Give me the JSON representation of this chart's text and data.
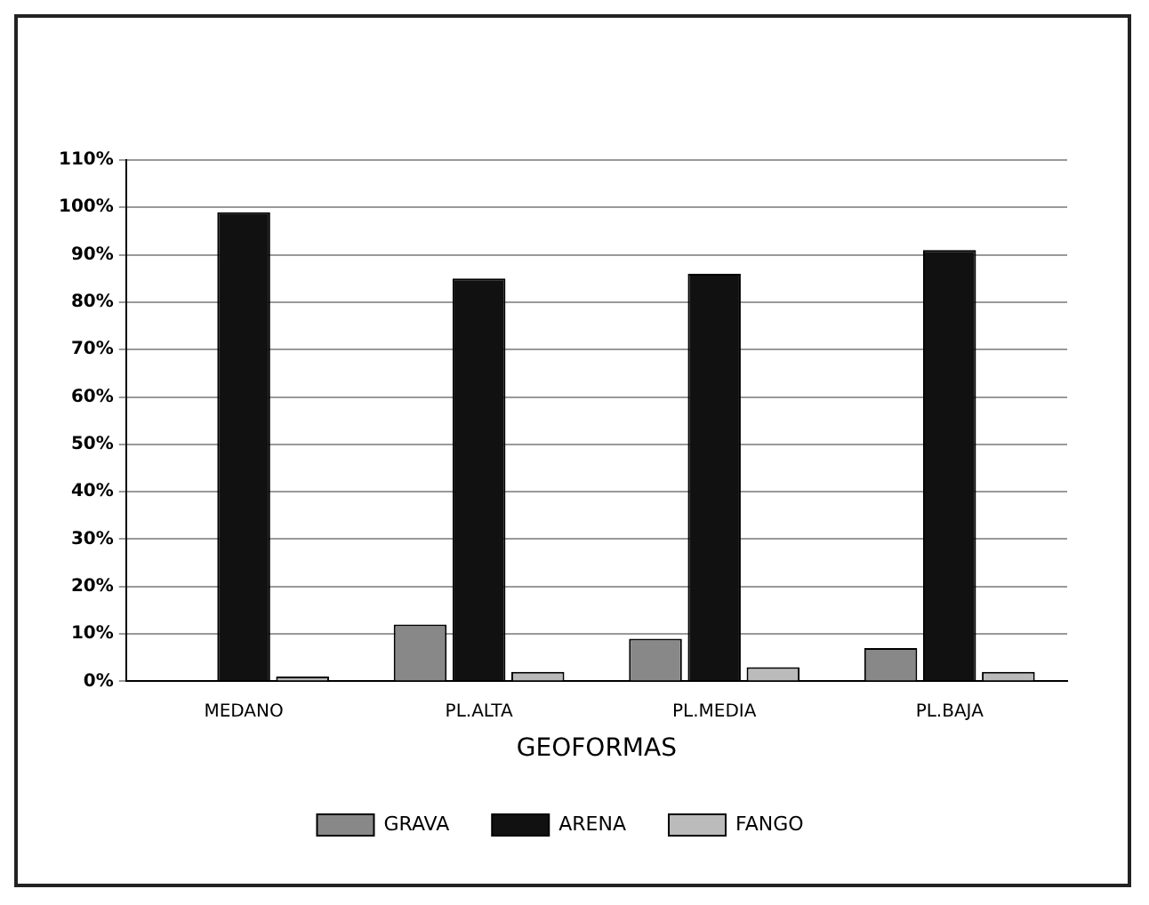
{
  "chart_data": {
    "type": "bar",
    "xlabel": "GEOFORMAS",
    "categories": [
      "MEDANO",
      "PL.ALTA",
      "PL.MEDIA",
      "PL.BAJA"
    ],
    "series": [
      {
        "name": "GRAVA",
        "color": "#888888",
        "values": [
          0,
          12,
          9,
          7
        ]
      },
      {
        "name": "ARENA",
        "color": "#111111",
        "values": [
          99,
          85,
          86,
          91
        ]
      },
      {
        "name": "FANGO",
        "color": "#bbbbbb",
        "values": [
          1,
          2,
          3,
          2
        ]
      }
    ],
    "ylim": [
      0,
      110
    ],
    "yticks": [
      {
        "value": 0,
        "label": "0%"
      },
      {
        "value": 10,
        "label": "10%"
      },
      {
        "value": 20,
        "label": "20%"
      },
      {
        "value": 30,
        "label": "30%"
      },
      {
        "value": 40,
        "label": "40%"
      },
      {
        "value": 50,
        "label": "50%"
      },
      {
        "value": 60,
        "label": "60%"
      },
      {
        "value": 70,
        "label": "70%"
      },
      {
        "value": 80,
        "label": "80%"
      },
      {
        "value": 90,
        "label": "90%"
      },
      {
        "value": 100,
        "label": "100%"
      },
      {
        "value": 110,
        "label": "110%"
      }
    ],
    "grid": "y",
    "legend": "bottom"
  }
}
